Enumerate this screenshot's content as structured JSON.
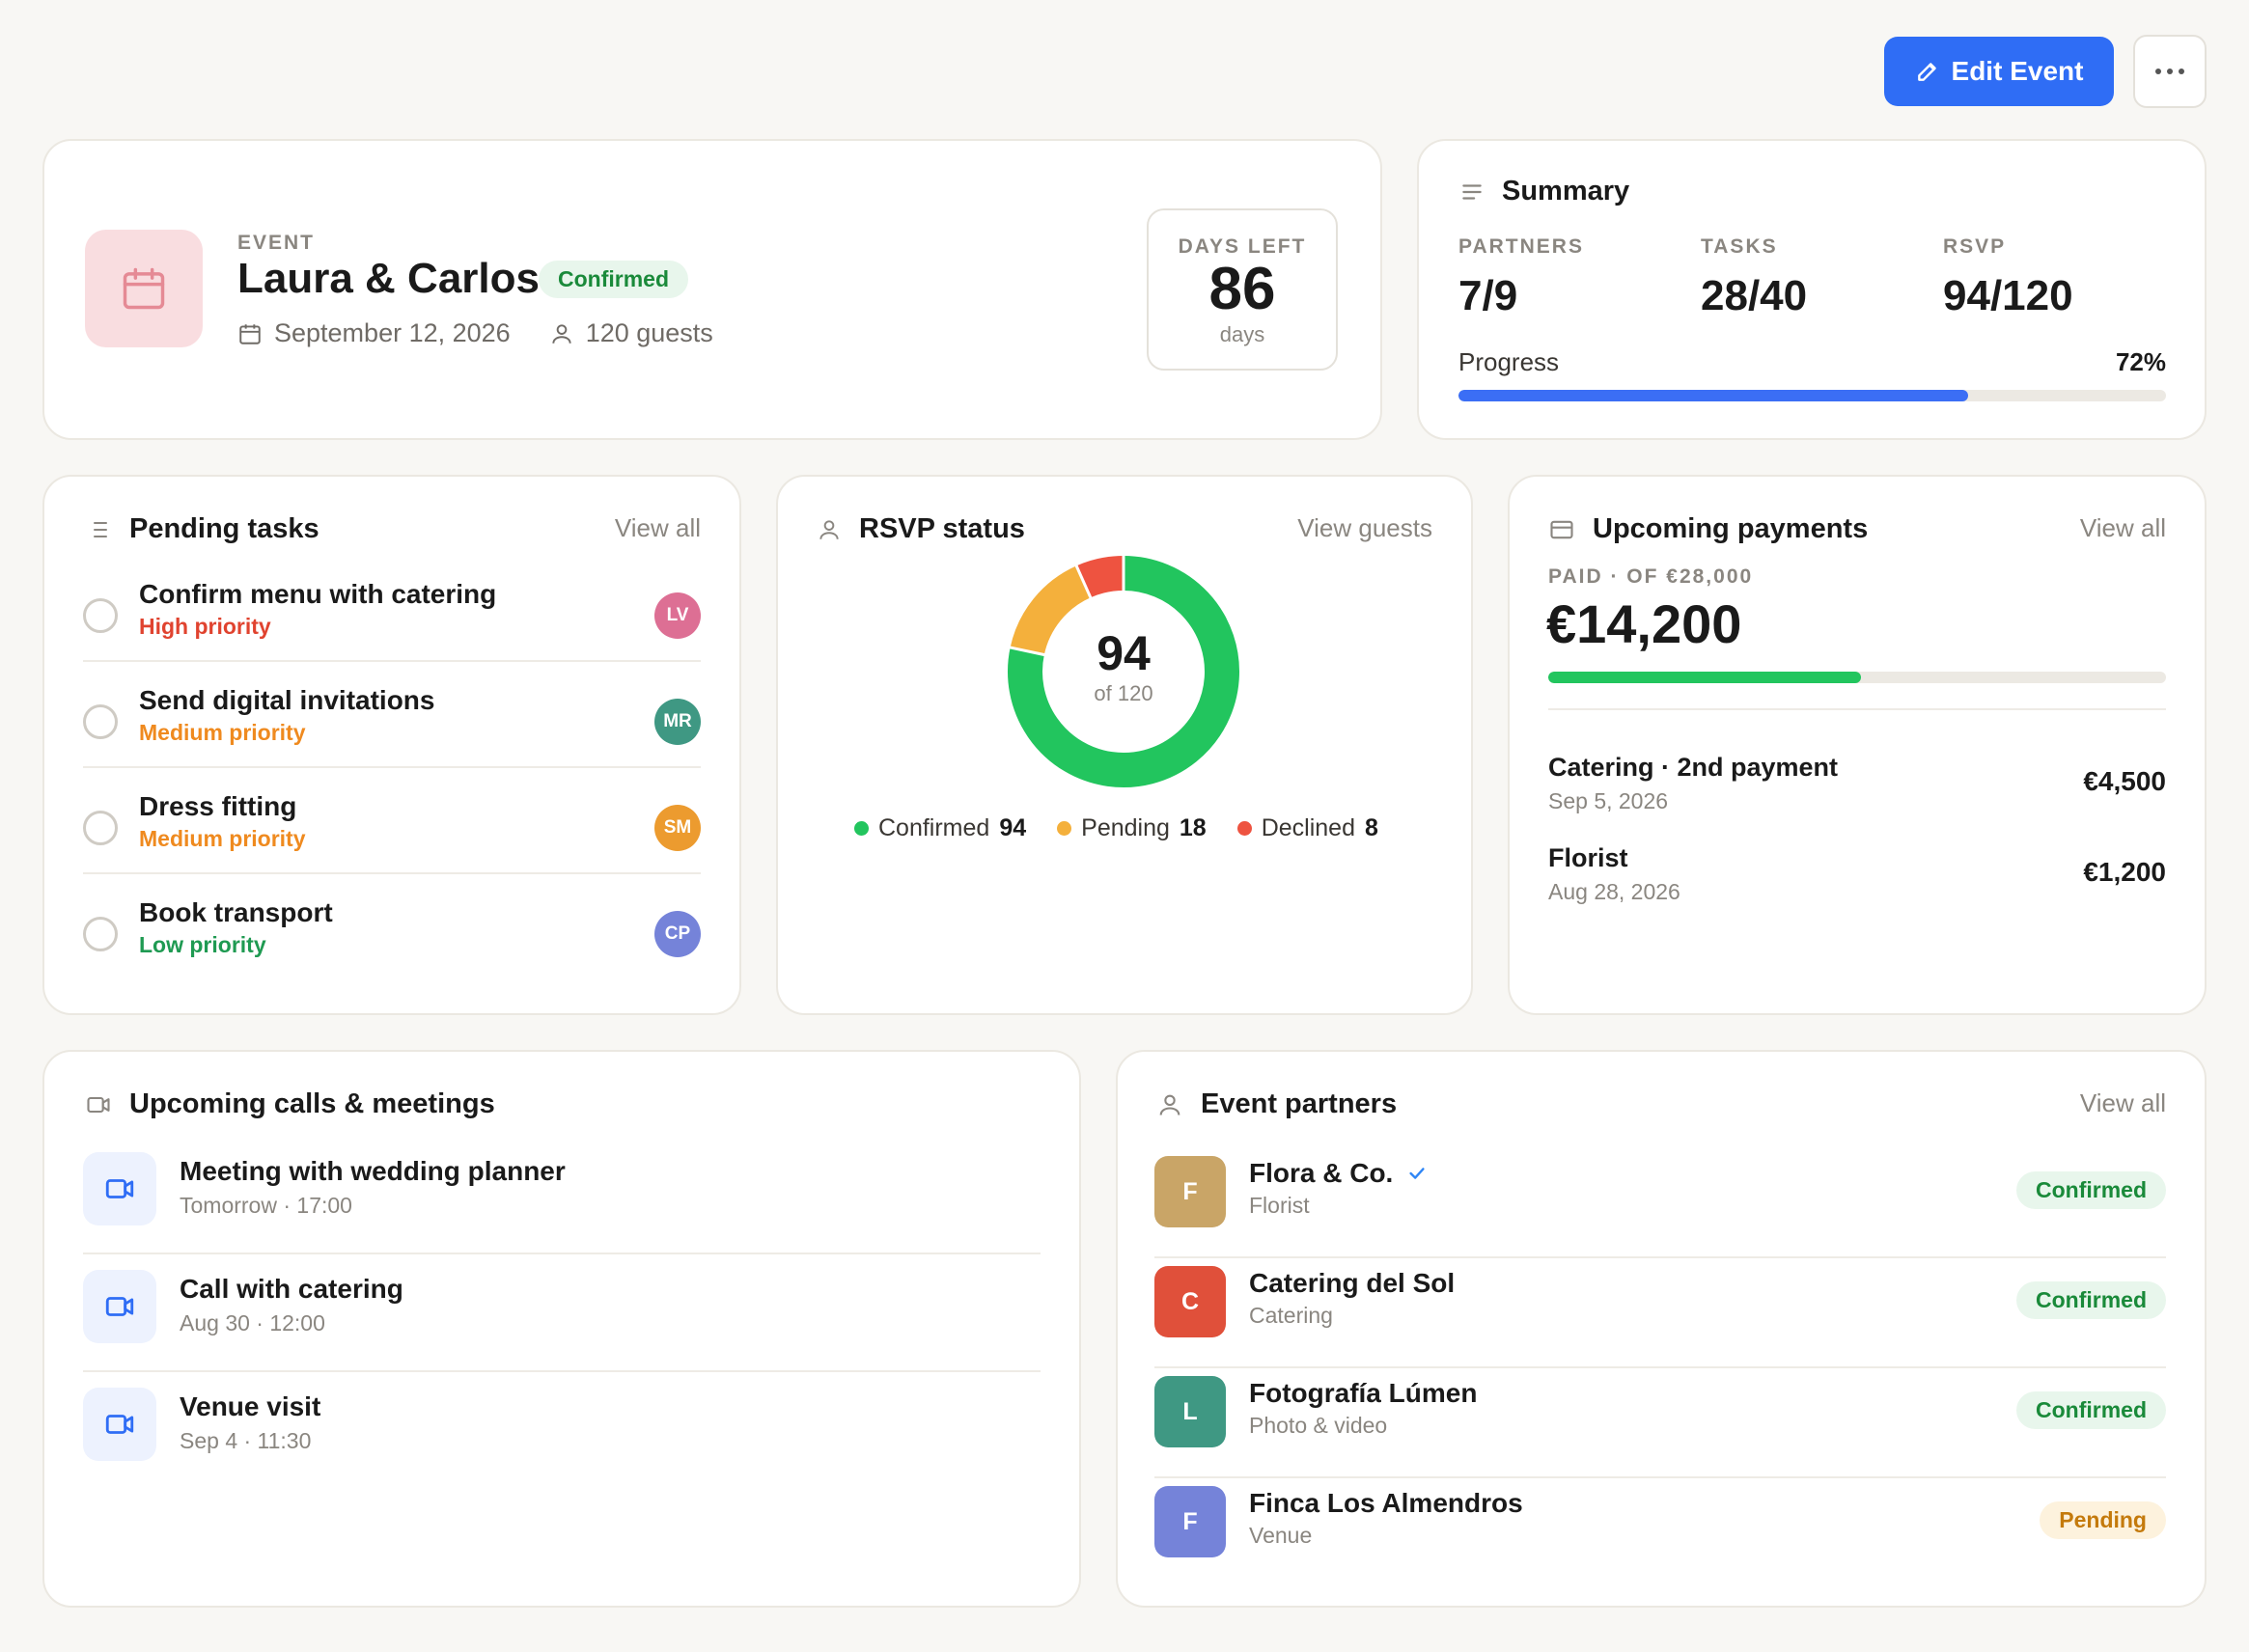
{
  "toolbar": {
    "edit_label": "Edit Event",
    "edit_icon": "pencil-icon",
    "more_icon": "more-horizontal-icon"
  },
  "event": {
    "caption": "EVENT",
    "name": "Laura & Carlos",
    "status": "Confirmed",
    "date": "September 12, 2026",
    "guests": "120 guests",
    "icon": "calendar-icon",
    "days_left_label": "DAYS LEFT",
    "days_left_value": "86",
    "days_left_unit": "days"
  },
  "summary": {
    "title": "Summary",
    "stats": [
      {
        "label": "PARTNERS",
        "value": "7/9"
      },
      {
        "label": "TASKS",
        "value": "28/40"
      },
      {
        "label": "RSVP",
        "value": "94/120"
      }
    ],
    "progress_label": "Progress",
    "progress_text": "72%",
    "progress_value": 0.72
  },
  "tasks": {
    "title": "Pending tasks",
    "view_all": "View all",
    "items": [
      {
        "title": "Confirm menu with catering",
        "priority": "High priority",
        "priority_color": "#e0432f",
        "assignee": "LV",
        "avatar_color": "#dd6f94"
      },
      {
        "title": "Send digital invitations",
        "priority": "Medium priority",
        "priority_color": "#ef8a1f",
        "assignee": "MR",
        "avatar_color": "#3f9883"
      },
      {
        "title": "Dress fitting",
        "priority": "Medium priority",
        "priority_color": "#ef8a1f",
        "assignee": "SM",
        "avatar_color": "#ec9b2f"
      },
      {
        "title": "Book transport",
        "priority": "Low priority",
        "priority_color": "#1f9a52",
        "assignee": "CP",
        "avatar_color": "#7583d9"
      }
    ]
  },
  "rsvp": {
    "title": "RSVP status",
    "view_link": "View guests",
    "center_value": "94",
    "center_sub": "of 120",
    "segments": [
      {
        "name": "Confirmed",
        "value": 94,
        "color": "#22c55e"
      },
      {
        "name": "Pending",
        "value": 18,
        "color": "#f4b03c"
      },
      {
        "name": "Declined",
        "value": 8,
        "color": "#ee5340"
      }
    ],
    "legend": [
      {
        "name": "Confirmed",
        "value": "94"
      },
      {
        "name": "Pending",
        "value": "18"
      },
      {
        "name": "Declined",
        "value": "8"
      }
    ]
  },
  "payments": {
    "title": "Upcoming payments",
    "view_all": "View all",
    "paid_caption": "PAID · OF €28,000",
    "paid_amount": "€14,200",
    "paid_ratio": 0.507,
    "items": [
      {
        "name": "Catering · 2nd payment",
        "date": "Sep 5, 2026",
        "amount": "€4,500"
      },
      {
        "name": "Florist",
        "date": "Aug 28, 2026",
        "amount": "€1,200"
      }
    ]
  },
  "calls": {
    "title": "Upcoming calls & meetings",
    "items": [
      {
        "title": "Meeting with wedding planner",
        "time": "Tomorrow · 17:00"
      },
      {
        "title": "Call with catering",
        "time": "Aug 30 · 12:00"
      },
      {
        "title": "Venue visit",
        "time": "Sep 4 · 11:30"
      }
    ]
  },
  "partners": {
    "title": "Event partners",
    "view_all": "View all",
    "items": [
      {
        "initial": "F",
        "name": "Flora & Co.",
        "category": "Florist",
        "status": "Confirmed",
        "color": "#c9a567",
        "verified": true
      },
      {
        "initial": "C",
        "name": "Catering del Sol",
        "category": "Catering",
        "status": "Confirmed",
        "color": "#e0503a",
        "verified": false
      },
      {
        "initial": "L",
        "name": "Fotografía Lúmen",
        "category": "Photo & video",
        "status": "Confirmed",
        "color": "#3f9883",
        "verified": false
      },
      {
        "initial": "F",
        "name": "Finca Los Almendros",
        "category": "Venue",
        "status": "Pending",
        "color": "#7583d9",
        "verified": false
      }
    ]
  }
}
